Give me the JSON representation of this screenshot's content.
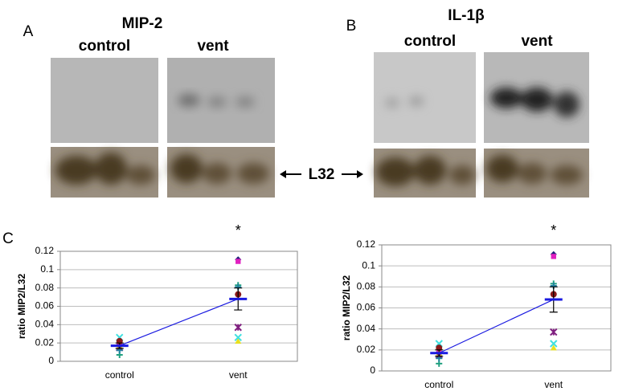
{
  "figure": {
    "panel_labels": [
      "A",
      "B",
      "C"
    ],
    "blots": [
      {
        "title": "MIP-2",
        "columns": [
          "control",
          "vent"
        ]
      },
      {
        "title": "IL-1β",
        "columns": [
          "control",
          "vent"
        ]
      }
    ],
    "loading_label": "L32"
  },
  "chart_data": [
    {
      "type": "scatter",
      "y_label": "ratio MIP2/L32",
      "annotation": "*",
      "categories": [
        "control",
        "vent"
      ],
      "ylim": [
        0,
        0.12
      ],
      "yticks": [
        0,
        0.02,
        0.04,
        0.06,
        0.08,
        0.1,
        0.12
      ],
      "grid": true,
      "series": [
        {
          "color": "#1f1f7a",
          "marker": "diamond",
          "values": [
            0.014,
            0.111
          ]
        },
        {
          "color": "#e020c0",
          "marker": "square",
          "values": [
            0.018,
            0.109
          ]
        },
        {
          "color": "#e8e020",
          "marker": "triangle",
          "values": [
            0.017,
            0.022
          ]
        },
        {
          "color": "#40e0e0",
          "marker": "x",
          "values": [
            0.026,
            0.026
          ]
        },
        {
          "color": "#802080",
          "marker": "star",
          "values": [
            0.015,
            0.037
          ]
        },
        {
          "color": "#8b1a1a",
          "marker": "circle",
          "values": [
            0.022,
            0.073
          ]
        },
        {
          "color": "#20a080",
          "marker": "plus",
          "values": [
            0.007,
            0.083
          ]
        },
        {
          "color": "#2080a0",
          "marker": "plus",
          "values": [
            0.012,
            0.081
          ]
        }
      ],
      "mean": {
        "color": "#1a1ae0",
        "values": [
          0.017,
          0.068
        ],
        "errors": [
          0.003,
          0.012
        ]
      }
    },
    {
      "type": "scatter",
      "y_label": "ratio MIP2/L32",
      "annotation": "*",
      "categories": [
        "control",
        "vent"
      ],
      "ylim": [
        0,
        0.12
      ],
      "yticks": [
        0,
        0.02,
        0.04,
        0.06,
        0.08,
        0.1,
        0.12
      ],
      "grid": true,
      "series": [
        {
          "color": "#1f1f7a",
          "marker": "diamond",
          "values": [
            0.014,
            0.111
          ]
        },
        {
          "color": "#e020c0",
          "marker": "square",
          "values": [
            0.018,
            0.109
          ]
        },
        {
          "color": "#e8e020",
          "marker": "triangle",
          "values": [
            0.017,
            0.022
          ]
        },
        {
          "color": "#40e0e0",
          "marker": "x",
          "values": [
            0.026,
            0.026
          ]
        },
        {
          "color": "#802080",
          "marker": "star",
          "values": [
            0.015,
            0.037
          ]
        },
        {
          "color": "#8b1a1a",
          "marker": "circle",
          "values": [
            0.022,
            0.073
          ]
        },
        {
          "color": "#20a080",
          "marker": "plus",
          "values": [
            0.007,
            0.083
          ]
        },
        {
          "color": "#2080a0",
          "marker": "plus",
          "values": [
            0.012,
            0.081
          ]
        }
      ],
      "mean": {
        "color": "#1a1ae0",
        "values": [
          0.017,
          0.068
        ],
        "errors": [
          0.003,
          0.012
        ]
      }
    }
  ]
}
